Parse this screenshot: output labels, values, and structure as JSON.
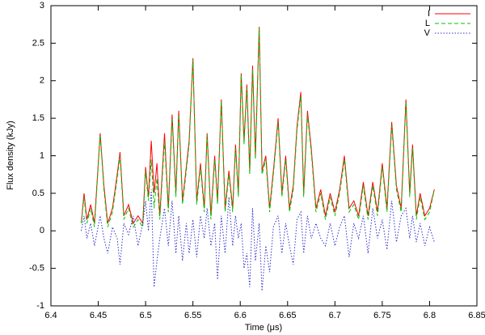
{
  "chart_data": {
    "type": "line",
    "xlabel": "Time (μs)",
    "ylabel": "Flux density (kJy)",
    "xlim": [
      6.4,
      6.85
    ],
    "xticks": [
      6.4,
      6.45,
      6.5,
      6.55,
      6.6,
      6.65,
      6.7,
      6.75,
      6.8,
      6.85
    ],
    "ylim": [
      -1,
      3
    ],
    "yticks": [
      -1,
      -0.5,
      0,
      0.5,
      1,
      1.5,
      2,
      2.5,
      3
    ],
    "legend": "upper right",
    "grid": false,
    "x": [
      6.432,
      6.435,
      6.438,
      6.442,
      6.446,
      6.452,
      6.456,
      6.46,
      6.465,
      6.47,
      6.473,
      6.477,
      6.482,
      6.487,
      6.492,
      6.497,
      6.5,
      6.503,
      6.506,
      6.509,
      6.512,
      6.515,
      6.52,
      6.524,
      6.528,
      6.532,
      6.535,
      6.539,
      6.543,
      6.546,
      6.55,
      6.554,
      6.558,
      6.562,
      6.565,
      6.569,
      6.573,
      6.576,
      6.58,
      6.584,
      6.588,
      6.592,
      6.595,
      6.598,
      6.601,
      6.604,
      6.607,
      6.61,
      6.613,
      6.616,
      6.62,
      6.623,
      6.627,
      6.631,
      6.635,
      6.64,
      6.644,
      6.648,
      6.652,
      6.656,
      6.66,
      6.664,
      6.667,
      6.671,
      6.675,
      6.68,
      6.685,
      6.69,
      6.695,
      6.7,
      6.705,
      6.71,
      6.715,
      6.72,
      6.725,
      6.73,
      6.735,
      6.74,
      6.745,
      6.75,
      6.755,
      6.76,
      6.765,
      6.77,
      6.775,
      6.779,
      6.782,
      6.786,
      6.79,
      6.795,
      6.8,
      6.805
    ],
    "series": [
      {
        "name": "I",
        "color": "#ff0000",
        "dash": "none",
        "values": [
          0.1,
          0.5,
          0.15,
          0.35,
          0.1,
          1.3,
          0.6,
          0.1,
          0.3,
          0.75,
          1.05,
          0.2,
          0.35,
          0.1,
          0.2,
          0.1,
          0.85,
          0.45,
          1.2,
          0.5,
          0.9,
          0.2,
          1.3,
          0.3,
          1.55,
          0.5,
          1.6,
          0.4,
          0.85,
          1.2,
          2.3,
          0.4,
          0.9,
          0.3,
          1.3,
          0.2,
          1.0,
          0.4,
          1.75,
          0.3,
          0.8,
          0.3,
          1.15,
          0.5,
          2.1,
          1.2,
          1.95,
          0.8,
          2.2,
          1.0,
          2.72,
          0.8,
          1.0,
          0.3,
          0.8,
          1.5,
          0.5,
          1.0,
          0.3,
          0.6,
          1.4,
          1.85,
          0.5,
          1.6,
          1.1,
          0.3,
          0.55,
          0.2,
          0.5,
          0.25,
          0.55,
          1.0,
          0.3,
          0.4,
          0.2,
          0.65,
          0.2,
          0.65,
          0.25,
          0.9,
          0.3,
          1.45,
          0.6,
          0.3,
          1.75,
          0.5,
          1.15,
          0.2,
          0.5,
          0.2,
          0.3,
          0.55
        ]
      },
      {
        "name": "L",
        "color": "#00c000",
        "dash": "5,3",
        "values": [
          0.1,
          0.45,
          0.1,
          0.3,
          0.05,
          1.28,
          0.55,
          0.05,
          0.25,
          0.7,
          1.0,
          0.15,
          0.3,
          0.05,
          0.15,
          0.05,
          0.8,
          0.4,
          0.95,
          0.3,
          0.7,
          0.15,
          1.2,
          0.25,
          1.5,
          0.45,
          1.55,
          0.35,
          0.8,
          1.15,
          2.28,
          0.35,
          0.85,
          0.25,
          1.28,
          0.15,
          0.95,
          0.35,
          1.73,
          0.25,
          0.75,
          0.25,
          1.1,
          0.45,
          2.08,
          1.15,
          1.9,
          0.75,
          2.15,
          0.95,
          2.7,
          0.75,
          0.95,
          0.25,
          0.75,
          1.45,
          0.45,
          0.95,
          0.25,
          0.55,
          1.35,
          1.8,
          0.45,
          1.55,
          1.05,
          0.25,
          0.5,
          0.15,
          0.45,
          0.2,
          0.5,
          0.95,
          0.25,
          0.35,
          0.15,
          0.6,
          0.15,
          0.6,
          0.2,
          0.85,
          0.25,
          1.4,
          0.55,
          0.25,
          1.72,
          0.45,
          1.1,
          0.15,
          0.45,
          0.15,
          0.25,
          0.55
        ]
      },
      {
        "name": "V",
        "color": "#3030c8",
        "dash": "1.5,2",
        "values": [
          0.0,
          0.2,
          -0.1,
          0.1,
          -0.2,
          0.2,
          -0.1,
          -0.3,
          0.05,
          -0.1,
          -0.45,
          0.1,
          -0.05,
          0.2,
          -0.2,
          0.1,
          0.4,
          0.0,
          0.55,
          -0.75,
          -0.4,
          -0.1,
          0.3,
          -0.2,
          0.4,
          -0.3,
          0.2,
          -0.4,
          0.1,
          -0.3,
          0.15,
          -0.35,
          0.2,
          -0.1,
          0.3,
          -0.2,
          0.1,
          -0.65,
          0.2,
          -0.3,
          0.45,
          -0.2,
          0.2,
          -0.1,
          0.1,
          -0.5,
          -0.3,
          -0.75,
          0.3,
          -0.4,
          0.1,
          -0.8,
          -0.2,
          -0.55,
          0.05,
          0.2,
          -0.3,
          0.1,
          -0.2,
          -0.45,
          0.15,
          0.25,
          -0.3,
          0.2,
          -0.1,
          0.1,
          -0.1,
          -0.2,
          0.1,
          -0.2,
          0.05,
          0.2,
          -0.35,
          0.1,
          -0.1,
          0.2,
          -0.3,
          0.3,
          -0.1,
          0.15,
          -0.25,
          0.4,
          -0.15,
          0.2,
          0.3,
          -0.1,
          0.2,
          -0.15,
          0.1,
          -0.2,
          0.05,
          -0.15
        ]
      }
    ]
  }
}
